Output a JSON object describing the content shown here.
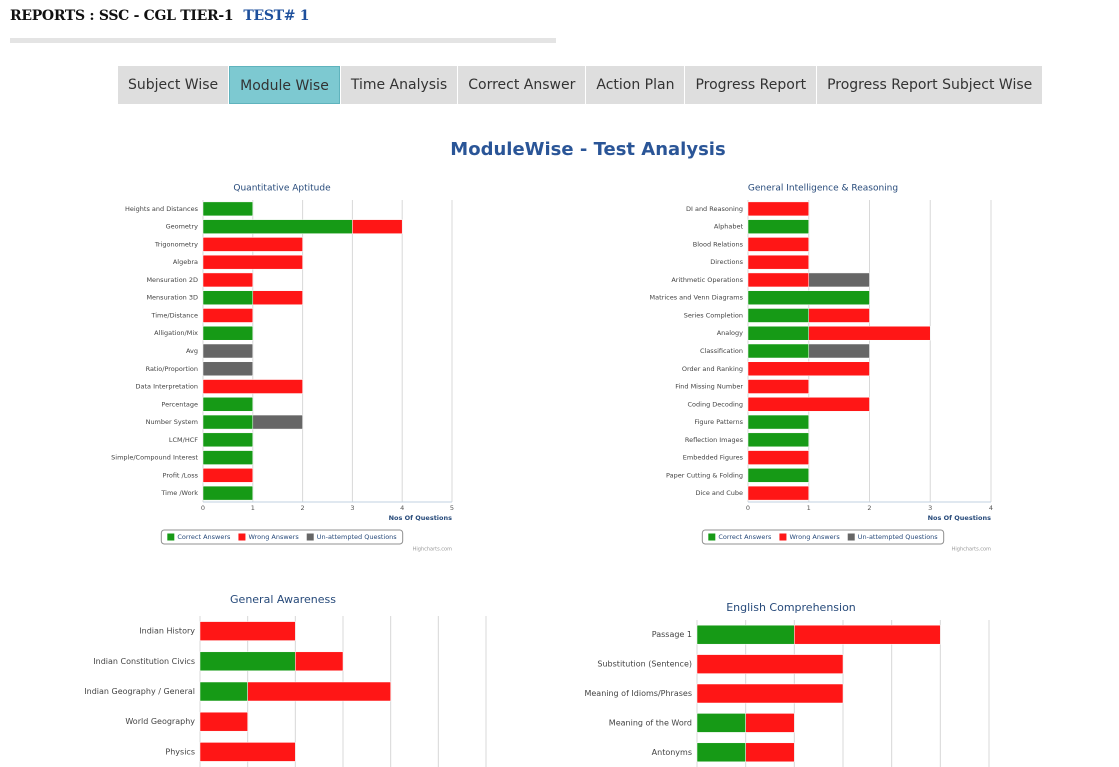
{
  "header": {
    "title": "REPORTS : SSC - CGL TIER-1",
    "test": "TEST# 1"
  },
  "tabs": [
    "Subject Wise",
    "Module Wise",
    "Time Analysis",
    "Correct Answer",
    "Action Plan",
    "Progress Report",
    "Progress Report Subject Wise"
  ],
  "active_tab": 1,
  "page_title": "ModuleWise - Test Analysis",
  "chart_data": [
    {
      "type": "bar",
      "orientation": "horizontal",
      "stacked": true,
      "title": "Quantitative Aptitude",
      "categories": [
        "Heights and Distances",
        "Geometry",
        "Trigonometry",
        "Algebra",
        "Mensuration 2D",
        "Mensuration 3D",
        "Time/Distance",
        "Alligation/Mix",
        "Avg",
        "Ratio/Proportion",
        "Data Interpretation",
        "Percentage",
        "Number System",
        "LCM/HCF",
        "Simple/Compound Interest",
        "Profit /Loss",
        "Time /Work"
      ],
      "series": [
        {
          "name": "Correct Answers",
          "color": "#169a16",
          "values": [
            1,
            3,
            0,
            0,
            0,
            1,
            0,
            1,
            0,
            0,
            0,
            1,
            1,
            1,
            1,
            0,
            1
          ]
        },
        {
          "name": "Wrong Answers",
          "color": "#ff1616",
          "values": [
            0,
            1,
            2,
            2,
            1,
            1,
            1,
            0,
            0,
            0,
            2,
            0,
            0,
            0,
            0,
            1,
            0
          ]
        },
        {
          "name": "Un-attempted Questions",
          "color": "#666666",
          "values": [
            0,
            0,
            0,
            0,
            0,
            0,
            0,
            0,
            1,
            1,
            0,
            0,
            1,
            0,
            0,
            0,
            0
          ]
        }
      ],
      "xlim": [
        0,
        5
      ],
      "xticks": [
        0,
        1,
        2,
        3,
        4,
        5
      ],
      "x_label": "Nos Of Questions",
      "grid": true,
      "tick_labels": true,
      "credit": "Highcharts.com"
    },
    {
      "type": "bar",
      "orientation": "horizontal",
      "stacked": true,
      "title": "General Intelligence & Reasoning",
      "categories": [
        "DI and Reasoning",
        "Alphabet",
        "Blood Relations",
        "Directions",
        "Arithmetic Operations",
        "Matrices and Venn Diagrams",
        "Series Completion",
        "Analogy",
        "Classification",
        "Order and Ranking",
        "Find Missing Number",
        "Coding Decoding",
        "Figure Patterns",
        "Reflection Images",
        "Embedded Figures",
        "Paper Cutting & Folding",
        "Dice and Cube"
      ],
      "series": [
        {
          "name": "Correct Answers",
          "color": "#169a16",
          "values": [
            0,
            1,
            0,
            0,
            0,
            2,
            1,
            1,
            1,
            0,
            0,
            0,
            1,
            1,
            0,
            1,
            0
          ]
        },
        {
          "name": "Wrong Answers",
          "color": "#ff1616",
          "values": [
            1,
            0,
            1,
            1,
            1,
            0,
            1,
            2,
            0,
            2,
            1,
            2,
            0,
            0,
            1,
            0,
            1
          ]
        },
        {
          "name": "Un-attempted Questions",
          "color": "#666666",
          "values": [
            0,
            0,
            0,
            0,
            1,
            0,
            0,
            0,
            1,
            0,
            0,
            0,
            0,
            0,
            0,
            0,
            0
          ]
        }
      ],
      "xlim": [
        0,
        4
      ],
      "xticks": [
        0,
        1,
        2,
        3,
        4
      ],
      "x_label": "Nos Of Questions",
      "grid": true,
      "tick_labels": true,
      "credit": "Highcharts.com"
    },
    {
      "type": "bar",
      "orientation": "horizontal",
      "stacked": true,
      "title": "General Awareness",
      "categories": [
        "Indian History",
        "Indian Constitution Civics",
        "Indian Geography / General",
        "World Geography",
        "Physics"
      ],
      "series": [
        {
          "color": "#169a16",
          "values": [
            0,
            2,
            1,
            0,
            0
          ]
        },
        {
          "color": "#ff1616",
          "values": [
            2,
            1,
            3,
            1,
            2
          ]
        }
      ],
      "xlim": [
        0,
        6
      ],
      "xticks": [
        0,
        1,
        2,
        3,
        4,
        5,
        6
      ],
      "grid": true,
      "tick_labels": false
    },
    {
      "type": "bar",
      "orientation": "horizontal",
      "stacked": true,
      "title": "English Comprehension",
      "categories": [
        "Passage 1",
        "Substitution (Sentence)",
        "Meaning of Idioms/Phrases",
        "Meaning of the Word",
        "Antonyms"
      ],
      "series": [
        {
          "color": "#169a16",
          "values": [
            2,
            0,
            0,
            1,
            1
          ]
        },
        {
          "color": "#ff1616",
          "values": [
            3,
            3,
            3,
            1,
            1
          ]
        }
      ],
      "xlim": [
        0,
        6
      ],
      "xticks": [
        0,
        1,
        2,
        3,
        4,
        5,
        6
      ],
      "grid": true,
      "tick_labels": false
    }
  ]
}
